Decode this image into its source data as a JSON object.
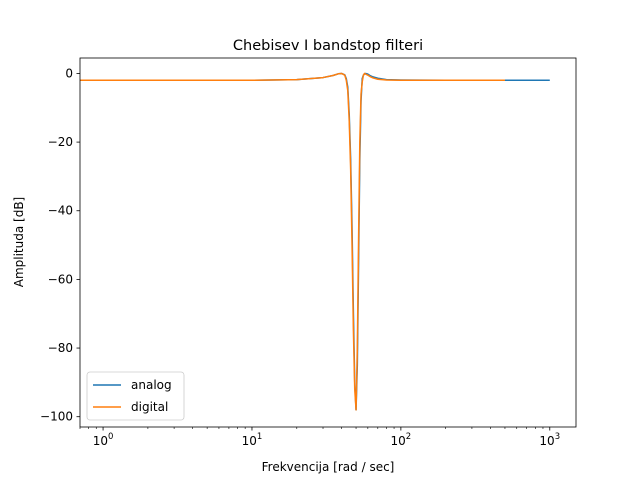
{
  "chart_data": {
    "type": "line",
    "title": "Chebisev I bandstop filteri",
    "xlabel": "Frekvencija [rad / sec]",
    "ylabel": "Amplituda [dB]",
    "x_scale": "log",
    "xlim": [
      0.7,
      1500
    ],
    "ylim": [
      -103,
      4.5
    ],
    "x_ticks": [
      {
        "value": 1,
        "base": "10",
        "exp": "0"
      },
      {
        "value": 10,
        "base": "10",
        "exp": "1"
      },
      {
        "value": 100,
        "base": "10",
        "exp": "2"
      },
      {
        "value": 1000,
        "base": "10",
        "exp": "3"
      }
    ],
    "y_ticks": [
      {
        "value": 0,
        "label": "0"
      },
      {
        "value": -20,
        "label": "−20"
      },
      {
        "value": -40,
        "label": "−40"
      },
      {
        "value": -60,
        "label": "−60"
      },
      {
        "value": -80,
        "label": "−80"
      },
      {
        "value": -100,
        "label": "−100"
      }
    ],
    "grid": false,
    "legend_position": "lower-left",
    "series": [
      {
        "name": "analog",
        "color": "#1f77b4",
        "x": [
          1,
          2,
          5,
          10,
          20,
          30,
          35,
          38,
          40,
          42,
          43,
          44,
          45,
          46,
          47,
          48,
          49,
          50,
          51,
          52,
          53,
          54,
          55,
          56,
          57,
          58,
          60,
          62,
          65,
          70,
          80,
          100,
          200,
          500,
          1000
        ],
        "y": [
          -2,
          -2,
          -2,
          -2,
          -1.8,
          -1.2,
          -0.6,
          -0.1,
          0,
          -0.4,
          -1.5,
          -4,
          -12,
          -25,
          -45,
          -70,
          -90,
          -98,
          -85,
          -55,
          -25,
          -8,
          -1.5,
          -0.5,
          -0.2,
          0,
          -0.2,
          -0.6,
          -1.0,
          -1.4,
          -1.8,
          -1.9,
          -2,
          -2,
          -2
        ]
      },
      {
        "name": "digital",
        "color": "#ff7f0e",
        "x": [
          0.7,
          1,
          2,
          5,
          10,
          20,
          30,
          35,
          38,
          40,
          42,
          43,
          44,
          45,
          46,
          47,
          48,
          49,
          50,
          51,
          52,
          53,
          54,
          55,
          56,
          57,
          58,
          60,
          62,
          65,
          70,
          80,
          100,
          200,
          500
        ],
        "y": [
          -2,
          -2,
          -2,
          -2,
          -2,
          -1.8,
          -1.2,
          -0.6,
          -0.1,
          0,
          -0.5,
          -2,
          -5,
          -14,
          -28,
          -50,
          -75,
          -92,
          -98,
          -80,
          -48,
          -20,
          -6,
          -2.5,
          -0.5,
          0,
          -0.2,
          -0.5,
          -0.9,
          -1.3,
          -1.7,
          -1.9,
          -2,
          -2,
          -2
        ]
      }
    ]
  }
}
